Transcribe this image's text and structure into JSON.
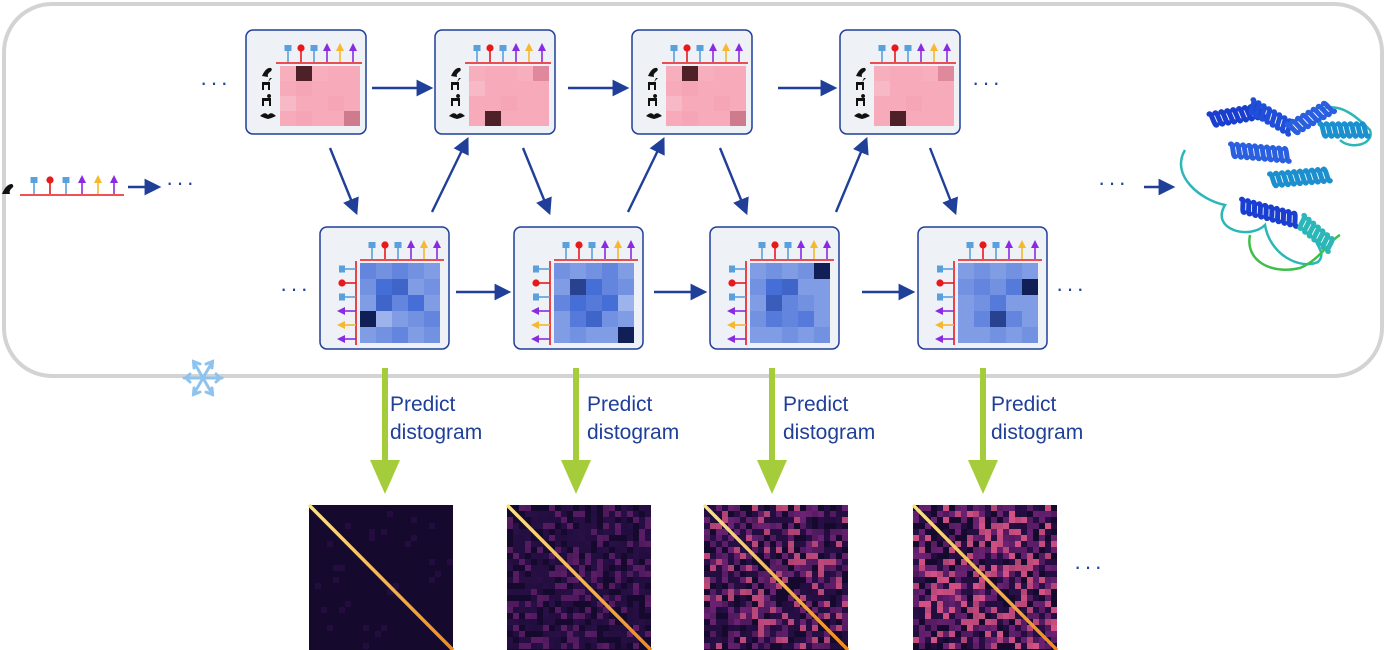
{
  "predict_label_line1": "Predict",
  "predict_label_line2": "distogram",
  "ellipsis": "···",
  "icons": {
    "frozen": "snowflake-icon",
    "species": [
      "seal-icon",
      "deer-icon",
      "monkey-icon",
      "bat-icon"
    ],
    "residue_pins": [
      "square-pin",
      "circle-pin",
      "square-pin",
      "triangle-pin",
      "triangle-pin",
      "triangle-pin"
    ]
  },
  "colors": {
    "frame": "#cfcfcf",
    "arrow": "#1f3f99",
    "predict_arrow": "#a5cc3a",
    "msa_cell": "#f7a8b8",
    "pair_cell": "#4a6fd6",
    "distogram_bg": "#150a2e",
    "distogram_diag": "#f5a623"
  },
  "msa_heatmaps": [
    [
      [
        0.25,
        0.95,
        0.25,
        0.3,
        0.3
      ],
      [
        0.3,
        0.35,
        0.3,
        0.3,
        0.3
      ],
      [
        0.15,
        0.3,
        0.3,
        0.35,
        0.3
      ],
      [
        0.3,
        0.35,
        0.3,
        0.3,
        0.6
      ]
    ],
    [
      [
        0.25,
        0.3,
        0.3,
        0.25,
        0.55
      ],
      [
        0.15,
        0.3,
        0.3,
        0.3,
        0.3
      ],
      [
        0.3,
        0.3,
        0.35,
        0.3,
        0.3
      ],
      [
        0.3,
        0.95,
        0.3,
        0.3,
        0.3
      ]
    ],
    [
      [
        0.25,
        0.95,
        0.25,
        0.3,
        0.3
      ],
      [
        0.3,
        0.35,
        0.3,
        0.3,
        0.3
      ],
      [
        0.15,
        0.3,
        0.3,
        0.35,
        0.3
      ],
      [
        0.3,
        0.35,
        0.3,
        0.3,
        0.6
      ]
    ],
    [
      [
        0.25,
        0.3,
        0.3,
        0.25,
        0.55
      ],
      [
        0.15,
        0.3,
        0.3,
        0.3,
        0.3
      ],
      [
        0.3,
        0.3,
        0.35,
        0.3,
        0.3
      ],
      [
        0.3,
        0.95,
        0.3,
        0.3,
        0.3
      ]
    ]
  ],
  "pair_heatmaps": [
    [
      [
        0.4,
        0.35,
        0.4,
        0.35,
        0.3
      ],
      [
        0.35,
        0.5,
        0.55,
        0.3,
        0.35
      ],
      [
        0.3,
        0.55,
        0.4,
        0.5,
        0.3
      ],
      [
        0.95,
        0.2,
        0.3,
        0.35,
        0.4
      ],
      [
        0.3,
        0.35,
        0.4,
        0.3,
        0.35
      ]
    ],
    [
      [
        0.35,
        0.3,
        0.35,
        0.4,
        0.3
      ],
      [
        0.3,
        0.75,
        0.5,
        0.4,
        0.35
      ],
      [
        0.4,
        0.5,
        0.45,
        0.5,
        0.2
      ],
      [
        0.3,
        0.45,
        0.55,
        0.35,
        0.3
      ],
      [
        0.3,
        0.35,
        0.3,
        0.3,
        0.95
      ]
    ],
    [
      [
        0.3,
        0.35,
        0.3,
        0.35,
        0.95
      ],
      [
        0.35,
        0.5,
        0.55,
        0.3,
        0.3
      ],
      [
        0.3,
        0.6,
        0.4,
        0.35,
        0.3
      ],
      [
        0.35,
        0.45,
        0.4,
        0.45,
        0.3
      ],
      [
        0.3,
        0.3,
        0.35,
        0.3,
        0.35
      ]
    ],
    [
      [
        0.3,
        0.35,
        0.3,
        0.35,
        0.3
      ],
      [
        0.35,
        0.4,
        0.35,
        0.45,
        0.95
      ],
      [
        0.3,
        0.35,
        0.45,
        0.3,
        0.3
      ],
      [
        0.3,
        0.4,
        0.75,
        0.4,
        0.3
      ],
      [
        0.3,
        0.3,
        0.35,
        0.3,
        0.35
      ]
    ]
  ],
  "distogram_contact_levels": [
    0.15,
    0.5,
    0.75,
    0.9
  ]
}
